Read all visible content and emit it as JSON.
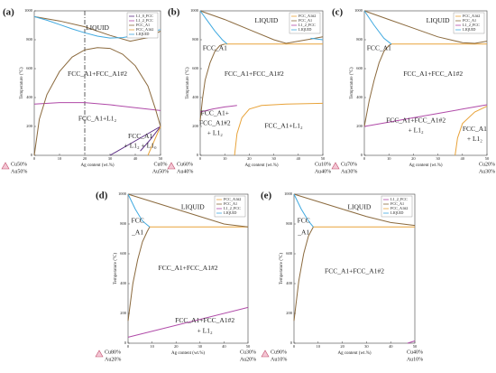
{
  "chart_data": [
    {
      "type": "line",
      "panel_label": "(a)",
      "x_label": "Ag content (wt.%)",
      "y_label": "Temperature (°C)",
      "xlim": [
        0,
        50
      ],
      "ylim": [
        0,
        1000
      ],
      "xticks": [
        0,
        10,
        20,
        30,
        40,
        50
      ],
      "yticks": [
        0,
        200,
        400,
        600,
        800,
        1000
      ],
      "vline": 20,
      "left_composition": [
        "Cu50%",
        "Au50%"
      ],
      "right_composition": [
        "Cu0%",
        "Au50%"
      ],
      "annotations": [
        "LIQUID",
        "FCC_A1+FCC_A1#2",
        "FCC_A1+L1₂",
        "FCC_A1",
        "+ L1₂ + L1₀"
      ],
      "series": [
        {
          "name": "L1_0_FCC",
          "color": "#5b2c83",
          "x": [
            30,
            40,
            50,
            null,
            42,
            46,
            50
          ],
          "values": [
            0,
            100,
            200,
            null,
            30,
            110,
            200
          ]
        },
        {
          "name": "L1_2_FCC",
          "color": "#b04aa8",
          "x": [
            0,
            10,
            20,
            30,
            40,
            50
          ],
          "values": [
            355,
            365,
            365,
            350,
            330,
            310
          ]
        },
        {
          "name": "FCC_A1",
          "color": "#8b6a3e",
          "x": [
            0,
            2,
            5,
            10,
            15,
            20,
            25,
            30,
            35,
            40,
            45,
            48,
            50,
            null,
            0,
            10,
            20,
            30,
            38,
            45,
            50
          ],
          "values": [
            0,
            250,
            420,
            580,
            680,
            730,
            745,
            740,
            700,
            620,
            480,
            320,
            200,
            null,
            960,
            930,
            890,
            830,
            790,
            815,
            860
          ]
        },
        {
          "name": "FCC_A1#2",
          "color": "#e8a33a",
          "x": [
            45,
            50
          ],
          "values": [
            0,
            200
          ]
        },
        {
          "name": "LIQUID",
          "color": "#3fa9e0",
          "x": [
            0,
            5,
            10,
            15,
            20,
            25,
            30,
            35,
            40,
            45,
            50
          ],
          "values": [
            960,
            935,
            905,
            875,
            848,
            825,
            812,
            815,
            830,
            850,
            870
          ]
        }
      ]
    },
    {
      "type": "line",
      "panel_label": "(b)",
      "x_label": "Ag content (wt.%)",
      "y_label": "Temperature (°C)",
      "xlim": [
        0,
        50
      ],
      "ylim": [
        0,
        1000
      ],
      "xticks": [
        0,
        10,
        20,
        30,
        40,
        50
      ],
      "yticks": [
        0,
        200,
        400,
        600,
        800,
        1000
      ],
      "left_composition": [
        "Cu60%",
        "Au40%"
      ],
      "right_composition": [
        "Cu10%",
        "Au40%"
      ],
      "annotations": [
        "LIQUID",
        "FCC_A1",
        "FCC_A1+FCC_A1#2",
        "FCC_A1+",
        "FCC_A1#2",
        "+ L1₂",
        "FCC_A1+L1₂"
      ],
      "series": [
        {
          "name": "FCC_A1#2",
          "color": "#e8a33a",
          "x": [
            10,
            50,
            null,
            14,
            15,
            17,
            20,
            25,
            35,
            50
          ],
          "values": [
            770,
            770,
            null,
            0,
            150,
            260,
            320,
            345,
            355,
            360
          ]
        },
        {
          "name": "FCC_A1",
          "color": "#8b6a3e",
          "x": [
            0,
            10,
            20,
            30,
            35,
            40,
            45,
            50,
            null,
            0,
            1,
            2,
            4,
            6,
            8,
            10
          ],
          "values": [
            1000,
            940,
            870,
            800,
            775,
            790,
            805,
            820,
            null,
            240,
            400,
            520,
            640,
            720,
            760,
            770
          ]
        },
        {
          "name": "L1_2_FCC",
          "color": "#b04aa8",
          "x": [
            0,
            5,
            10,
            15
          ],
          "values": [
            300,
            320,
            335,
            345
          ]
        },
        {
          "name": "LIQUID",
          "color": "#3fa9e0",
          "x": [
            0,
            3,
            6,
            9,
            11,
            null,
            45,
            50
          ],
          "values": [
            1000,
            930,
            860,
            800,
            770,
            null,
            810,
            800
          ]
        }
      ]
    },
    {
      "type": "line",
      "panel_label": "(c)",
      "x_label": "Ag content (wt.%)",
      "y_label": "Temperature (°C)",
      "xlim": [
        0,
        50
      ],
      "ylim": [
        0,
        1000
      ],
      "xticks": [
        0,
        10,
        20,
        30,
        40,
        50
      ],
      "yticks": [
        0,
        200,
        400,
        600,
        800,
        1000
      ],
      "left_composition": [
        "Cu70%",
        "Au30%"
      ],
      "right_composition": [
        "Cu20%",
        "Au30%"
      ],
      "annotations": [
        "LIQUID",
        "FCC_A1",
        "FCC_A1+FCC_A1#2",
        "FCC_A1+FCC_A1#2",
        "+ L1₂",
        "FCC_A1",
        "+ L1₂"
      ],
      "series": [
        {
          "name": "FCC_A1#2",
          "color": "#e8a33a",
          "x": [
            11,
            50,
            null,
            37,
            38,
            40,
            45,
            50
          ],
          "values": [
            770,
            770,
            null,
            0,
            120,
            220,
            300,
            340
          ]
        },
        {
          "name": "FCC_A1",
          "color": "#8b6a3e",
          "x": [
            0,
            10,
            20,
            30,
            40,
            45,
            50,
            null,
            0,
            2,
            4,
            6,
            8,
            10,
            11
          ],
          "values": [
            1000,
            940,
            880,
            820,
            780,
            775,
            790,
            null,
            200,
            380,
            520,
            640,
            720,
            760,
            770
          ]
        },
        {
          "name": "L1_2_FCC",
          "color": "#b04aa8",
          "x": [
            0,
            10,
            20,
            30,
            40,
            50
          ],
          "values": [
            200,
            230,
            260,
            290,
            320,
            350
          ]
        },
        {
          "name": "LIQUID",
          "color": "#3fa9e0",
          "x": [
            0,
            4,
            8,
            11
          ],
          "values": [
            1000,
            900,
            810,
            770
          ]
        }
      ]
    },
    {
      "type": "line",
      "panel_label": "(d)",
      "x_label": "Ag content (wt.%)",
      "y_label": "Temperature (°C)",
      "xlim": [
        0,
        50
      ],
      "ylim": [
        0,
        1000
      ],
      "xticks": [
        0,
        10,
        20,
        30,
        40,
        50
      ],
      "yticks": [
        0,
        200,
        400,
        600,
        800,
        1000
      ],
      "left_composition": [
        "Cu80%",
        "Au20%"
      ],
      "right_composition": [
        "Cu30%",
        "Au20%"
      ],
      "annotations": [
        "LIQUID",
        "FCC",
        "_A1",
        "FCC_A1+FCC_A1#2",
        "FCC_A1+FCC_A1#2",
        "+ L1₂"
      ],
      "series": [
        {
          "name": "FCC_A1#2",
          "color": "#e8a33a",
          "x": [
            9,
            50
          ],
          "values": [
            780,
            780
          ]
        },
        {
          "name": "FCC_A1",
          "color": "#8b6a3e",
          "x": [
            0,
            10,
            20,
            30,
            40,
            50,
            null,
            0,
            2,
            4,
            6,
            8,
            9
          ],
          "values": [
            1000,
            950,
            900,
            850,
            800,
            780,
            null,
            150,
            400,
            560,
            680,
            750,
            780
          ]
        },
        {
          "name": "L1_2_FCC",
          "color": "#b04aa8",
          "x": [
            0,
            50
          ],
          "values": [
            40,
            240
          ]
        },
        {
          "name": "LIQUID",
          "color": "#3fa9e0",
          "x": [
            0,
            3,
            6,
            9
          ],
          "values": [
            1000,
            900,
            820,
            780
          ]
        }
      ]
    },
    {
      "type": "line",
      "panel_label": "(e)",
      "x_label": "Ag content (wt.%)",
      "y_label": "Temperature (°C)",
      "xlim": [
        0,
        50
      ],
      "ylim": [
        0,
        1000
      ],
      "xticks": [
        0,
        10,
        20,
        30,
        40,
        50
      ],
      "yticks": [
        0,
        200,
        400,
        600,
        800,
        1000
      ],
      "left_composition": [
        "Cu90%",
        "Au10%"
      ],
      "right_composition": [
        "Cu40%",
        "Au10%"
      ],
      "annotations": [
        "LIQUID",
        "FCC",
        "_A1",
        "FCC_A1+FCC_A1#2"
      ],
      "series": [
        {
          "name": "L1_2_FCC",
          "color": "#b04aa8",
          "x": [
            47,
            50
          ],
          "values": [
            0,
            15
          ]
        },
        {
          "name": "FCC_A1",
          "color": "#8b6a3e",
          "x": [
            0,
            10,
            20,
            30,
            40,
            50,
            null,
            0,
            2,
            4,
            6,
            8
          ],
          "values": [
            1000,
            950,
            900,
            850,
            810,
            790,
            null,
            150,
            420,
            600,
            720,
            780
          ]
        },
        {
          "name": "FCC_A1#2",
          "color": "#e8a33a",
          "x": [
            8,
            50
          ],
          "values": [
            780,
            780
          ]
        },
        {
          "name": "LIQUID",
          "color": "#3fa9e0",
          "x": [
            0,
            3,
            6,
            8
          ],
          "values": [
            1000,
            900,
            820,
            780
          ]
        }
      ]
    }
  ]
}
